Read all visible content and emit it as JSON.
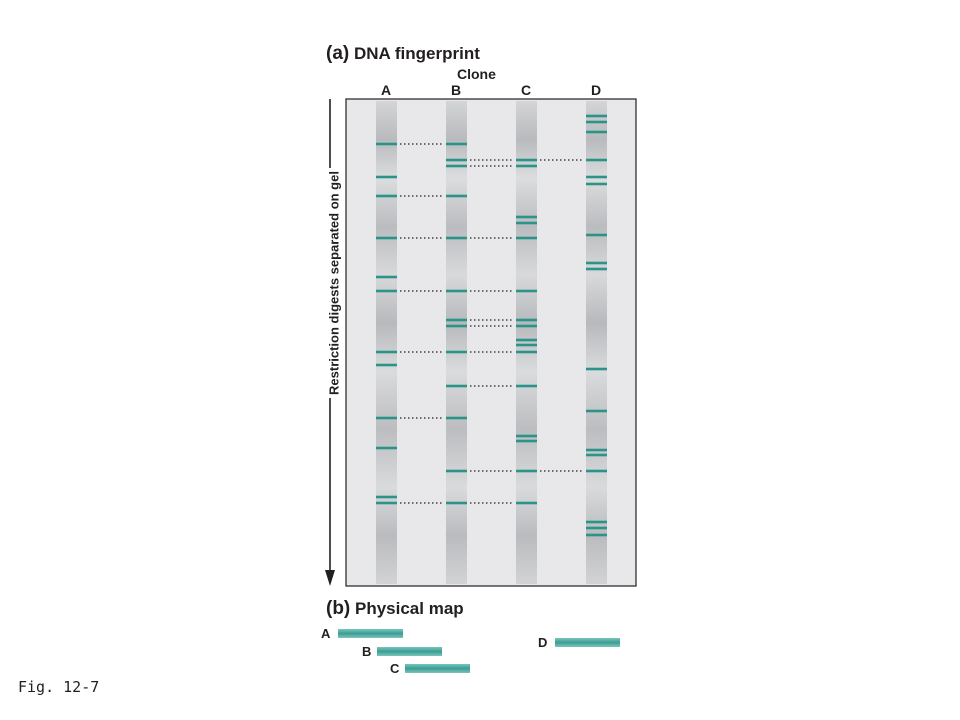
{
  "panel_a": {
    "tag": "(a)",
    "title": "DNA fingerprint"
  },
  "clone_label": "Clone",
  "lanes": [
    {
      "label": "A",
      "bands": [
        144,
        177,
        196,
        238,
        277,
        291,
        352,
        365,
        418,
        448,
        497,
        503
      ]
    },
    {
      "label": "B",
      "bands": [
        144,
        160,
        166,
        196,
        238,
        291,
        320,
        326,
        352,
        386,
        418,
        471,
        503
      ]
    },
    {
      "label": "C",
      "bands": [
        160,
        166,
        217,
        223,
        238,
        291,
        320,
        326,
        340,
        345,
        352,
        386,
        436,
        441,
        471,
        503
      ]
    },
    {
      "label": "D",
      "bands": [
        116,
        122,
        132,
        160,
        177,
        184,
        235,
        263,
        269,
        369,
        411,
        450,
        455,
        471,
        522,
        528,
        535
      ]
    }
  ],
  "y_axis_label": "Restriction digests separated on gel",
  "panel_b": {
    "tag": "(b)",
    "title": "Physical map"
  },
  "physical_map": [
    {
      "label": "A"
    },
    {
      "label": "B"
    },
    {
      "label": "C"
    },
    {
      "label": "D"
    }
  ],
  "caption": "Fig. 12-7",
  "colors": {
    "band": "#2a9488",
    "lane": "#c8c9cb",
    "gel": "#e8e8ea",
    "map_bar": "#3fa59b"
  }
}
